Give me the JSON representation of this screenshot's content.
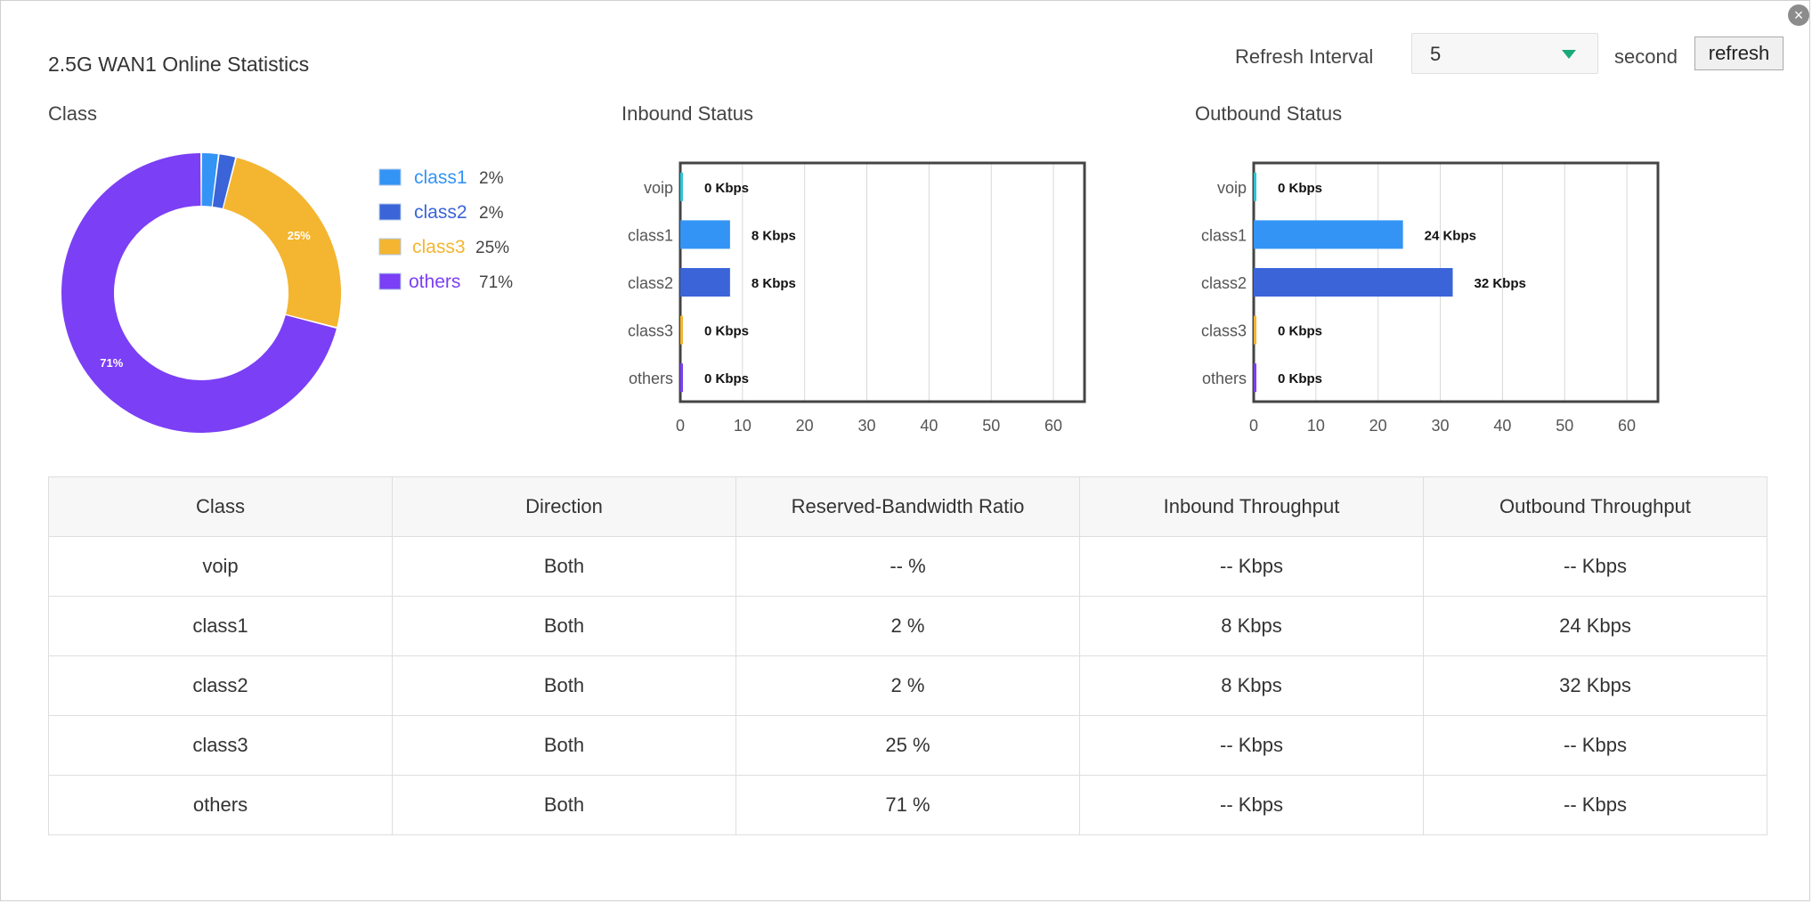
{
  "header": {
    "title": "2.5G WAN1 Online Statistics",
    "refresh_interval_label": "Refresh Interval",
    "refresh_interval_value": "5",
    "second_label": "second",
    "refresh_button": "refresh",
    "close_icon": "close-icon"
  },
  "sections": {
    "class": "Class",
    "inbound": "Inbound Status",
    "outbound": "Outbound Status"
  },
  "chart_data": [
    {
      "type": "pie",
      "title": "Class",
      "categories": [
        "class1",
        "class2",
        "class3",
        "others"
      ],
      "values": [
        2,
        2,
        25,
        71
      ],
      "colors": [
        "#3394f5",
        "#3a64d8",
        "#f4b530",
        "#7b3ff5"
      ],
      "legend_labels": [
        "2%",
        "2%",
        "25%",
        "71%"
      ],
      "slice_labels": [
        "",
        "",
        "25%",
        "71%"
      ],
      "legend": "right"
    },
    {
      "type": "bar",
      "orientation": "horizontal",
      "title": "Inbound Status",
      "categories": [
        "voip",
        "class1",
        "class2",
        "class3",
        "others"
      ],
      "values": [
        0,
        8,
        8,
        0,
        0
      ],
      "data_labels": [
        "0 Kbps",
        "8 Kbps",
        "8 Kbps",
        "0 Kbps",
        "0 Kbps"
      ],
      "colors": [
        "#2ec4d6",
        "#3394f5",
        "#3a64d8",
        "#f4b530",
        "#7b3ff5"
      ],
      "xlim": [
        0,
        65
      ],
      "xticks": [
        "0",
        "10",
        "20",
        "30",
        "40",
        "50",
        "60"
      ],
      "grid": true
    },
    {
      "type": "bar",
      "orientation": "horizontal",
      "title": "Outbound Status",
      "categories": [
        "voip",
        "class1",
        "class2",
        "class3",
        "others"
      ],
      "values": [
        0,
        24,
        32,
        0,
        0
      ],
      "data_labels": [
        "0 Kbps",
        "24 Kbps",
        "32 Kbps",
        "0 Kbps",
        "0 Kbps"
      ],
      "colors": [
        "#2ec4d6",
        "#3394f5",
        "#3a64d8",
        "#f4b530",
        "#7b3ff5"
      ],
      "xlim": [
        0,
        65
      ],
      "xticks": [
        "0",
        "10",
        "20",
        "30",
        "40",
        "50",
        "60"
      ],
      "grid": true
    }
  ],
  "table": {
    "headers": [
      "Class",
      "Direction",
      "Reserved-Bandwidth Ratio",
      "Inbound Throughput",
      "Outbound Throughput"
    ],
    "rows": [
      [
        "voip",
        "Both",
        "-- %",
        "-- Kbps",
        "-- Kbps"
      ],
      [
        "class1",
        "Both",
        "2 %",
        "8 Kbps",
        "24 Kbps"
      ],
      [
        "class2",
        "Both",
        "2 %",
        "8 Kbps",
        "32 Kbps"
      ],
      [
        "class3",
        "Both",
        "25 %",
        "-- Kbps",
        "-- Kbps"
      ],
      [
        "others",
        "Both",
        "71 %",
        "-- Kbps",
        "-- Kbps"
      ]
    ]
  }
}
